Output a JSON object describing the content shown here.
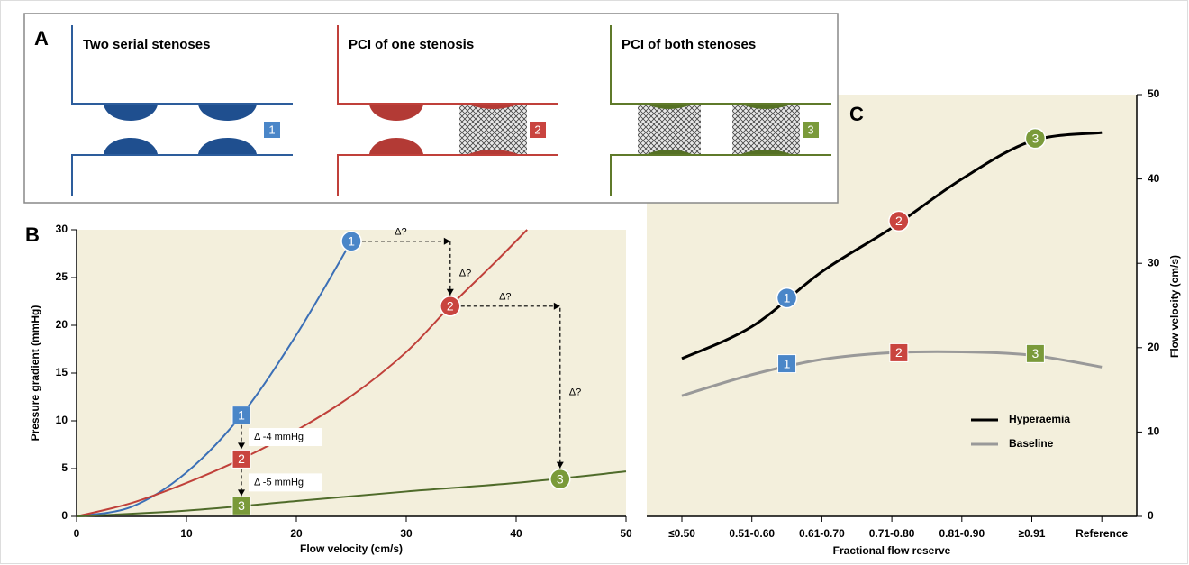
{
  "panel_a": {
    "letter": "A",
    "panels": [
      {
        "title": "Two serial stenoses",
        "badge": "1",
        "color": "#2d5d9c",
        "lesion_color": "#1f4f8f",
        "badge_color": "#4a86c8",
        "stented": [
          false,
          false
        ]
      },
      {
        "title": "PCI of one stenosis",
        "badge": "2",
        "color": "#c0403a",
        "lesion_color": "#b33a35",
        "badge_color": "#c9443f",
        "stented": [
          false,
          true
        ]
      },
      {
        "title": "PCI of both stenoses",
        "badge": "3",
        "color": "#5f7a2a",
        "lesion_color": "#557025",
        "badge_color": "#7a9a3a",
        "stented": [
          true,
          true
        ]
      }
    ]
  },
  "chart_data": [
    {
      "type": "line",
      "letter": "B",
      "y_label": "Pressure gradient (mmHg)",
      "x_label": "Flow velocity (cm/s)",
      "xlim": [
        0,
        50
      ],
      "ylim": [
        0,
        30
      ],
      "xticks": [
        0,
        10,
        20,
        30,
        40,
        50
      ],
      "yticks": [
        0,
        5,
        10,
        15,
        20,
        25,
        30
      ],
      "series": [
        {
          "color": "#3b6fb6",
          "x": [
            0,
            5,
            10,
            15,
            20,
            25
          ],
          "values": [
            0,
            1.0,
            4.6,
            10.6,
            19.0,
            28.8
          ]
        },
        {
          "color": "#c0403a",
          "x": [
            0,
            5,
            10,
            15,
            20,
            25,
            30,
            34,
            38,
            41
          ],
          "values": [
            0,
            1.4,
            3.5,
            6.0,
            9.0,
            12.6,
            17.2,
            22.0,
            26.5,
            30.0
          ]
        },
        {
          "color": "#4f6b2a",
          "x": [
            0,
            10,
            20,
            30,
            40,
            50
          ],
          "values": [
            0,
            0.6,
            1.6,
            2.6,
            3.5,
            4.7
          ]
        }
      ],
      "markers": [
        {
          "label": "1",
          "shape": "circle",
          "color": "#4a86c8",
          "x": 25,
          "value": 28.8
        },
        {
          "label": "2",
          "shape": "circle",
          "color": "#c9443f",
          "x": 34,
          "value": 22.0
        },
        {
          "label": "3",
          "shape": "circle",
          "color": "#7a9a3a",
          "x": 44,
          "value": 3.9
        },
        {
          "label": "1",
          "shape": "square",
          "color": "#4a86c8",
          "x": 15,
          "value": 10.6
        },
        {
          "label": "2",
          "shape": "square",
          "color": "#c9443f",
          "x": 15,
          "value": 6.0
        },
        {
          "label": "3",
          "shape": "square",
          "color": "#7a9a3a",
          "x": 15,
          "value": 1.1
        }
      ],
      "annotations": [
        "Δ?",
        "Δ?",
        "Δ?",
        "Δ?",
        "Δ -4 mmHg",
        "Δ -5 mmHg"
      ]
    },
    {
      "type": "line",
      "letter": "C",
      "y_label": "Flow velocity (cm/s)",
      "x_label": "Fractional flow reserve",
      "categories": [
        "≤0.50",
        "0.51-0.60",
        "0.61-0.70",
        "0.71-0.80",
        "0.81-0.90",
        "≥0.91",
        "Reference"
      ],
      "ylim": [
        0,
        50
      ],
      "yticks": [
        0,
        10,
        20,
        30,
        40,
        50
      ],
      "legend": "lower right",
      "series": [
        {
          "name": "Hyperaemia",
          "color": "#000000",
          "values": [
            18.7,
            22.5,
            29.0,
            34.2,
            40.0,
            44.5,
            45.5
          ]
        },
        {
          "name": "Baseline",
          "color": "#999999",
          "values": [
            14.3,
            16.8,
            18.6,
            19.4,
            19.5,
            19.1,
            17.7
          ]
        }
      ],
      "markers": [
        {
          "label": "1",
          "shape": "circle",
          "color": "#4a86c8",
          "x": 1.5,
          "value": 25.9
        },
        {
          "label": "2",
          "shape": "circle",
          "color": "#c9443f",
          "x": 3.1,
          "value": 35.0
        },
        {
          "label": "3",
          "shape": "circle",
          "color": "#7a9a3a",
          "x": 5.05,
          "value": 44.8
        },
        {
          "label": "1",
          "shape": "square",
          "color": "#4a86c8",
          "x": 1.5,
          "value": 18.1
        },
        {
          "label": "2",
          "shape": "square",
          "color": "#c9443f",
          "x": 3.1,
          "value": 19.4
        },
        {
          "label": "3",
          "shape": "square",
          "color": "#7a9a3a",
          "x": 5.05,
          "value": 19.3
        }
      ]
    }
  ]
}
